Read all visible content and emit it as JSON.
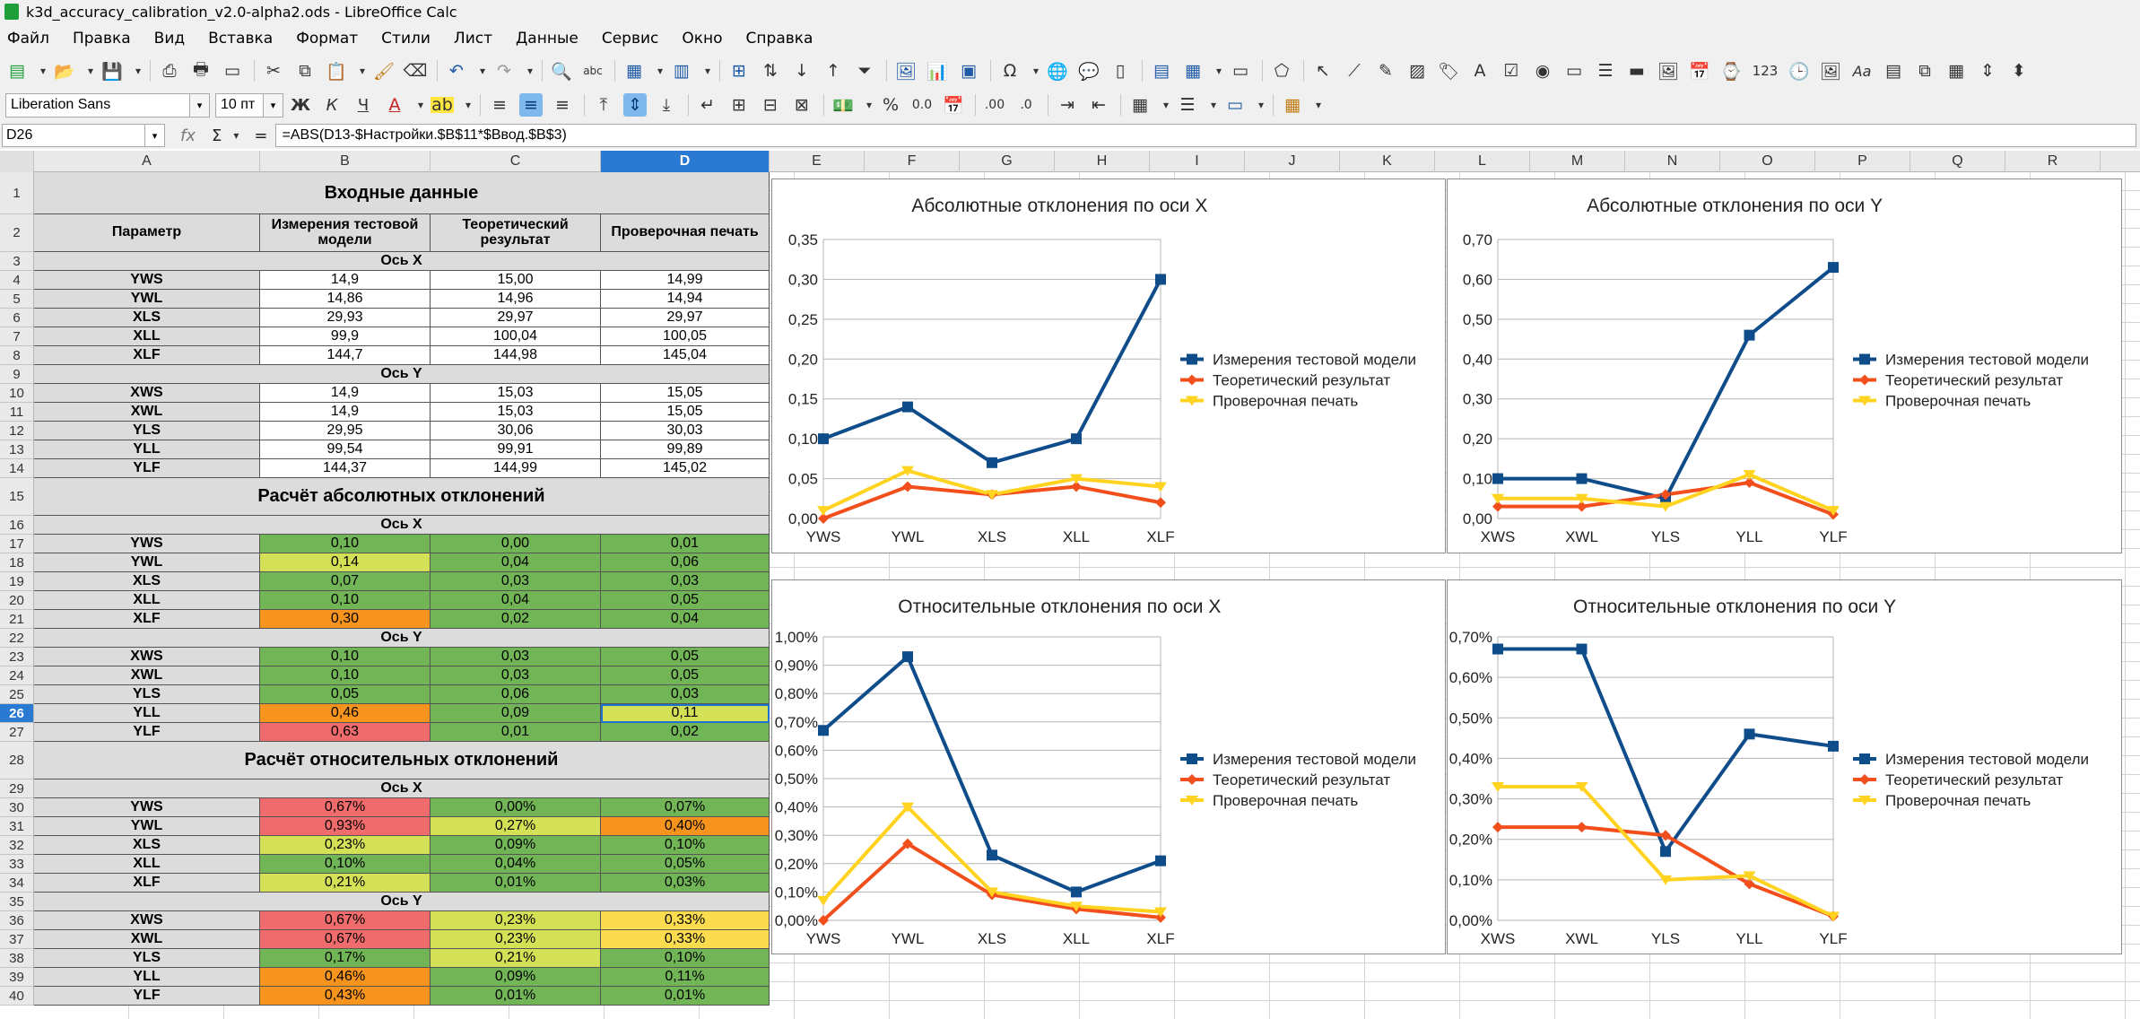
{
  "window": {
    "title": "k3d_accuracy_calibration_v2.0-alpha2.ods - LibreOffice Calc"
  },
  "menu": [
    "Файл",
    "Правка",
    "Вид",
    "Вставка",
    "Формат",
    "Стили",
    "Лист",
    "Данные",
    "Сервис",
    "Окно",
    "Справка"
  ],
  "format_bar": {
    "font_name": "Liberation Sans",
    "font_size": "10 пт",
    "bold": "Ж",
    "italic": "К",
    "underline": "Ч"
  },
  "toolbar_text": {
    "num123": "123",
    "aa": "Aa",
    "percent": "%",
    "zero_dec": "0.0",
    "dec_add": ".00",
    "dec_del": ".0"
  },
  "formula_bar": {
    "cell_ref": "D26",
    "formula": "=ABS(D13-$Настройки.$B$11*$Ввод.$B$3)"
  },
  "columns": [
    "A",
    "B",
    "C",
    "D",
    "E",
    "F",
    "G",
    "H",
    "I",
    "J",
    "K",
    "L",
    "M",
    "N",
    "O",
    "P",
    "Q",
    "R"
  ],
  "selected_column": "D",
  "selected_row": "26",
  "rows": [
    "1",
    "2",
    "3",
    "4",
    "5",
    "6",
    "7",
    "8",
    "9",
    "10",
    "11",
    "12",
    "13",
    "14",
    "15",
    "16",
    "17",
    "18",
    "19",
    "20",
    "21",
    "22",
    "23",
    "24",
    "25",
    "26",
    "27",
    "28",
    "29",
    "30",
    "31",
    "32",
    "33",
    "34",
    "35",
    "36",
    "37",
    "38",
    "39",
    "40"
  ],
  "sheet": {
    "section1_title": "Входные данные",
    "headers": [
      "Параметр",
      "Измерения тестовой модели",
      "Теоретический результат",
      "Проверочная печать"
    ],
    "section2_title": "Расчёт абсолютных отклонений",
    "section3_title": "Расчёт относительных отклонений",
    "axis_x": "Ось X",
    "axis_y": "Ось Y",
    "input_x": [
      [
        "YWS",
        "14,9",
        "15,00",
        "14,99"
      ],
      [
        "YWL",
        "14,86",
        "14,96",
        "14,94"
      ],
      [
        "XLS",
        "29,93",
        "29,97",
        "29,97"
      ],
      [
        "XLL",
        "99,9",
        "100,04",
        "100,05"
      ],
      [
        "XLF",
        "144,7",
        "144,98",
        "145,04"
      ]
    ],
    "input_y": [
      [
        "XWS",
        "14,9",
        "15,03",
        "15,05"
      ],
      [
        "XWL",
        "14,9",
        "15,03",
        "15,05"
      ],
      [
        "YLS",
        "29,95",
        "30,06",
        "30,03"
      ],
      [
        "YLL",
        "99,54",
        "99,91",
        "99,89"
      ],
      [
        "YLF",
        "144,37",
        "144,99",
        "145,02"
      ]
    ],
    "abs_x": [
      [
        "YWS",
        "0,10",
        "0,00",
        "0,01"
      ],
      [
        "YWL",
        "0,14",
        "0,04",
        "0,06"
      ],
      [
        "XLS",
        "0,07",
        "0,03",
        "0,03"
      ],
      [
        "XLL",
        "0,10",
        "0,04",
        "0,05"
      ],
      [
        "XLF",
        "0,30",
        "0,02",
        "0,04"
      ]
    ],
    "abs_y": [
      [
        "XWS",
        "0,10",
        "0,03",
        "0,05"
      ],
      [
        "XWL",
        "0,10",
        "0,03",
        "0,05"
      ],
      [
        "YLS",
        "0,05",
        "0,06",
        "0,03"
      ],
      [
        "YLL",
        "0,46",
        "0,09",
        "0,11"
      ],
      [
        "YLF",
        "0,63",
        "0,01",
        "0,02"
      ]
    ],
    "rel_x": [
      [
        "YWS",
        "0,67%",
        "0,00%",
        "0,07%"
      ],
      [
        "YWL",
        "0,93%",
        "0,27%",
        "0,40%"
      ],
      [
        "XLS",
        "0,23%",
        "0,09%",
        "0,10%"
      ],
      [
        "XLL",
        "0,10%",
        "0,04%",
        "0,05%"
      ],
      [
        "XLF",
        "0,21%",
        "0,01%",
        "0,03%"
      ]
    ],
    "rel_y": [
      [
        "XWS",
        "0,67%",
        "0,23%",
        "0,33%"
      ],
      [
        "XWL",
        "0,67%",
        "0,23%",
        "0,33%"
      ],
      [
        "YLS",
        "0,17%",
        "0,21%",
        "0,10%"
      ],
      [
        "YLL",
        "0,46%",
        "0,09%",
        "0,11%"
      ],
      [
        "YLF",
        "0,43%",
        "0,01%",
        "0,01%"
      ]
    ]
  },
  "cell_colors": {
    "abs_x": [
      [
        "gr",
        "gr",
        "gr"
      ],
      [
        "ye",
        "gr",
        "gr"
      ],
      [
        "gr",
        "gr",
        "gr"
      ],
      [
        "gr",
        "gr",
        "gr"
      ],
      [
        "or",
        "gr",
        "gr"
      ]
    ],
    "abs_y": [
      [
        "gr",
        "gr",
        "gr"
      ],
      [
        "gr",
        "gr",
        "gr"
      ],
      [
        "gr",
        "gr",
        "gr"
      ],
      [
        "or",
        "gr",
        "ye"
      ],
      [
        "rd",
        "gr",
        "gr"
      ]
    ],
    "rel_x": [
      [
        "rd",
        "gr",
        "gr"
      ],
      [
        "rd",
        "ye",
        "or"
      ],
      [
        "ye",
        "gr",
        "gr"
      ],
      [
        "gr",
        "gr",
        "gr"
      ],
      [
        "ye",
        "gr",
        "gr"
      ]
    ],
    "rel_y": [
      [
        "rd",
        "ye",
        "yl"
      ],
      [
        "rd",
        "ye",
        "yl"
      ],
      [
        "gr",
        "ye",
        "gr"
      ],
      [
        "or",
        "gr",
        "gr"
      ],
      [
        "or",
        "gr",
        "gr"
      ]
    ]
  },
  "palette": {
    "green": "#71b557",
    "lime": "#d4e157",
    "orange": "#f7941e",
    "red": "#f06b6b",
    "yellow": "#fbdc4f",
    "selection": "#2a7ad3"
  },
  "chart_data": [
    {
      "type": "line",
      "title": "Абсолютные отклонения по оси X",
      "categories": [
        "YWS",
        "YWL",
        "XLS",
        "XLL",
        "XLF"
      ],
      "ylim": [
        0,
        0.35
      ],
      "yticks": [
        "0,00",
        "0,05",
        "0,10",
        "0,15",
        "0,20",
        "0,25",
        "0,30",
        "0,35"
      ],
      "legend": "right",
      "series": [
        {
          "name": "Измерения тестовой модели",
          "color": "#0f4c8a",
          "marker": "square",
          "values": [
            0.1,
            0.14,
            0.07,
            0.1,
            0.3
          ]
        },
        {
          "name": "Теоретический результат",
          "color": "#f24f1c",
          "marker": "diamond",
          "values": [
            0.0,
            0.04,
            0.03,
            0.04,
            0.02
          ]
        },
        {
          "name": "Проверочная печать",
          "color": "#ffd320",
          "marker": "triangle",
          "values": [
            0.01,
            0.06,
            0.03,
            0.05,
            0.04
          ]
        }
      ]
    },
    {
      "type": "line",
      "title": "Абсолютные отклонения по оси Y",
      "categories": [
        "XWS",
        "XWL",
        "YLS",
        "YLL",
        "YLF"
      ],
      "ylim": [
        0,
        0.7
      ],
      "yticks": [
        "0,00",
        "0,10",
        "0,20",
        "0,30",
        "0,40",
        "0,50",
        "0,60",
        "0,70"
      ],
      "legend": "right",
      "series": [
        {
          "name": "Измерения тестовой модели",
          "color": "#0f4c8a",
          "marker": "square",
          "values": [
            0.1,
            0.1,
            0.05,
            0.46,
            0.63
          ]
        },
        {
          "name": "Теоретический результат",
          "color": "#f24f1c",
          "marker": "diamond",
          "values": [
            0.03,
            0.03,
            0.06,
            0.09,
            0.01
          ]
        },
        {
          "name": "Проверочная печать",
          "color": "#ffd320",
          "marker": "triangle",
          "values": [
            0.05,
            0.05,
            0.03,
            0.11,
            0.02
          ]
        }
      ]
    },
    {
      "type": "line",
      "title": "Относительные отклонения по оси X",
      "categories": [
        "YWS",
        "YWL",
        "XLS",
        "XLL",
        "XLF"
      ],
      "ylim": [
        0,
        1.0
      ],
      "yticks": [
        "0,00%",
        "0,10%",
        "0,20%",
        "0,30%",
        "0,40%",
        "0,50%",
        "0,60%",
        "0,70%",
        "0,80%",
        "0,90%",
        "1,00%"
      ],
      "legend": "right",
      "series": [
        {
          "name": "Измерения тестовой модели",
          "color": "#0f4c8a",
          "marker": "square",
          "values": [
            0.67,
            0.93,
            0.23,
            0.1,
            0.21
          ]
        },
        {
          "name": "Теоретический результат",
          "color": "#f24f1c",
          "marker": "diamond",
          "values": [
            0.0,
            0.27,
            0.09,
            0.04,
            0.01
          ]
        },
        {
          "name": "Проверочная печать",
          "color": "#ffd320",
          "marker": "triangle",
          "values": [
            0.07,
            0.4,
            0.1,
            0.05,
            0.03
          ]
        }
      ]
    },
    {
      "type": "line",
      "title": "Относительные отклонения по оси Y",
      "categories": [
        "XWS",
        "XWL",
        "YLS",
        "YLL",
        "YLF"
      ],
      "ylim": [
        0,
        0.7
      ],
      "yticks": [
        "0,00%",
        "0,10%",
        "0,20%",
        "0,30%",
        "0,40%",
        "0,50%",
        "0,60%",
        "0,70%"
      ],
      "legend": "right",
      "series": [
        {
          "name": "Измерения тестовой модели",
          "color": "#0f4c8a",
          "marker": "square",
          "values": [
            0.67,
            0.67,
            0.17,
            0.46,
            0.43
          ]
        },
        {
          "name": "Теоретический результат",
          "color": "#f24f1c",
          "marker": "diamond",
          "values": [
            0.23,
            0.23,
            0.21,
            0.09,
            0.01
          ]
        },
        {
          "name": "Проверочная печать",
          "color": "#ffd320",
          "marker": "triangle",
          "values": [
            0.33,
            0.33,
            0.1,
            0.11,
            0.01
          ]
        }
      ]
    }
  ]
}
